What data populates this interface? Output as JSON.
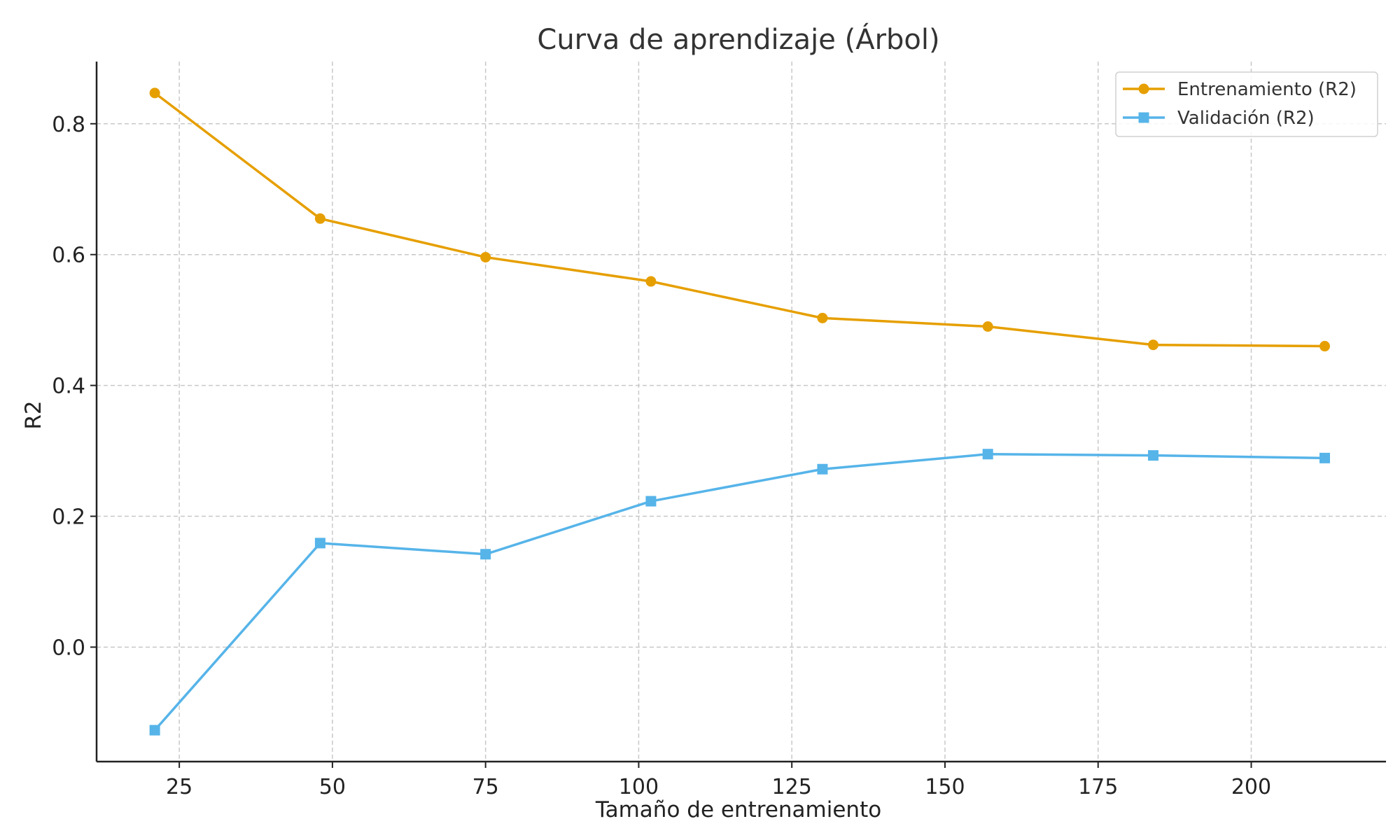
{
  "chart_data": {
    "type": "line",
    "title": "Curva de aprendizaje (Árbol)",
    "xlabel": "Tamaño de entrenamiento",
    "ylabel": "R2",
    "xlim": [
      11.5,
      222
    ],
    "ylim": [
      -0.175,
      0.895
    ],
    "x_ticks": [
      25,
      50,
      75,
      100,
      125,
      150,
      175,
      200
    ],
    "y_ticks": [
      0.0,
      0.2,
      0.4,
      0.6,
      0.8
    ],
    "y_tick_labels": [
      "0.0",
      "0.2",
      "0.4",
      "0.6",
      "0.8"
    ],
    "grid": true,
    "legend_position": "top-right",
    "x": [
      21,
      48,
      75,
      102,
      130,
      157,
      184,
      212
    ],
    "series": [
      {
        "name": "Entrenamiento (R2)",
        "color": "#E69F00",
        "marker": "circle",
        "values": [
          0.847,
          0.655,
          0.596,
          0.559,
          0.503,
          0.49,
          0.462,
          0.46
        ]
      },
      {
        "name": "Validación (R2)",
        "color": "#56B4E9",
        "marker": "square",
        "values": [
          -0.127,
          0.159,
          0.142,
          0.223,
          0.272,
          0.295,
          0.293,
          0.289
        ]
      }
    ]
  }
}
